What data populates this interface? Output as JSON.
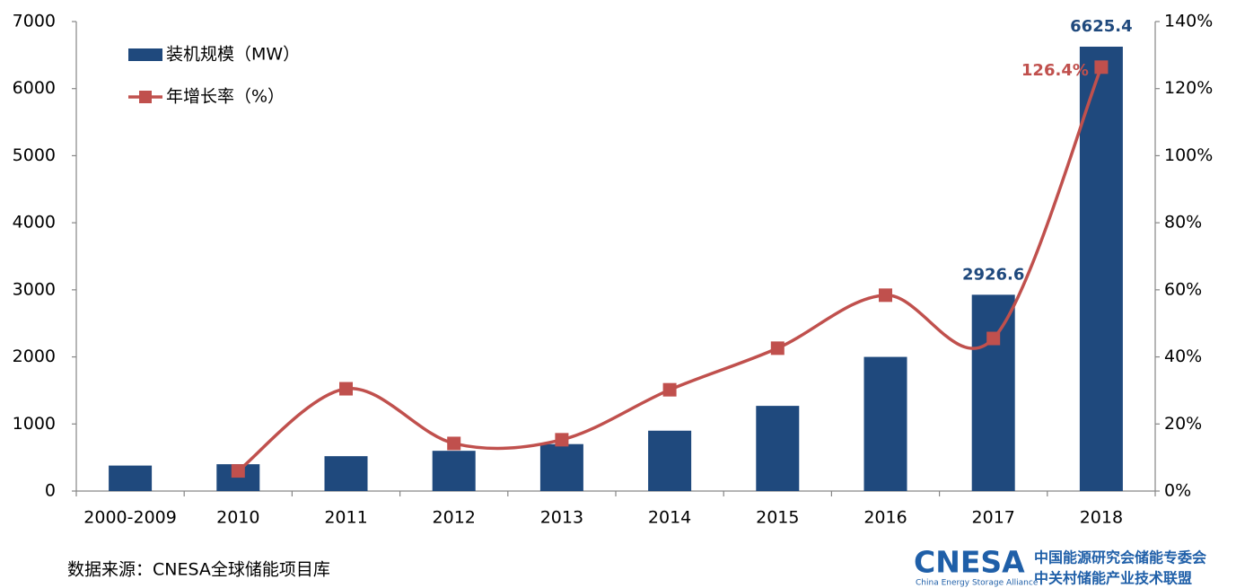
{
  "chart_data": {
    "type": "bar",
    "categories": [
      "2000-2009",
      "2010",
      "2011",
      "2012",
      "2013",
      "2014",
      "2015",
      "2016",
      "2017",
      "2018"
    ],
    "series": [
      {
        "name": "装机规模（MW）",
        "type": "bar",
        "color": "#1f497d",
        "values": [
          380,
          400,
          520,
          600,
          700,
          900,
          1270,
          2000,
          2926.6,
          6625.4
        ],
        "value_labels": [
          null,
          null,
          null,
          null,
          null,
          null,
          null,
          null,
          "2926.6",
          "6625.4"
        ]
      },
      {
        "name": "年增长率（%）",
        "type": "line",
        "axis": "y2",
        "color": "#c0504d",
        "smooth": true,
        "values": [
          null,
          6,
          30.5,
          14.2,
          15.3,
          30.2,
          42.6,
          58.4,
          45.5,
          126.4
        ],
        "value_labels": [
          null,
          null,
          null,
          null,
          null,
          null,
          null,
          null,
          null,
          "126.4%"
        ]
      }
    ],
    "ylim": [
      0,
      7000
    ],
    "yticks": [
      0,
      1000,
      2000,
      3000,
      4000,
      5000,
      6000,
      7000
    ],
    "y2lim": [
      0,
      140
    ],
    "y2ticks": [
      {
        "value": 0,
        "label": "0%"
      },
      {
        "value": 20,
        "label": "20%"
      },
      {
        "value": 40,
        "label": "40%"
      },
      {
        "value": 60,
        "label": "60%"
      },
      {
        "value": 80,
        "label": "80%"
      },
      {
        "value": 100,
        "label": "100%"
      },
      {
        "value": 120,
        "label": "120%"
      },
      {
        "value": 140,
        "label": "140%"
      }
    ],
    "grid": false,
    "legend": "upper left",
    "source": "数据来源：CNESA全球储能项目库",
    "logo": {
      "mark": "CNESA",
      "english": "China Energy Storage Alliance",
      "line1": "中国能源研究会储能专委会",
      "line2": "中关村储能产业技术联盟"
    }
  }
}
